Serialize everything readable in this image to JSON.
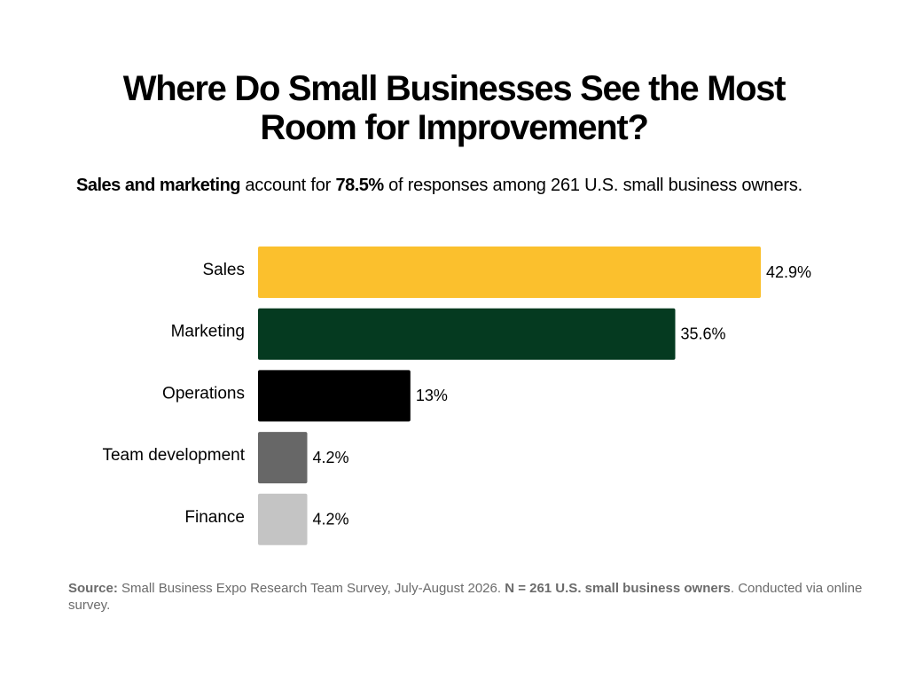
{
  "title": {
    "line1": "Where Do Small Businesses See the Most",
    "line2": "Room for Improvement?"
  },
  "subtitle": {
    "bold_lead": "Sales and marketing",
    "text1": " account for ",
    "bold_value": "78.5%",
    "text2": " of responses among 261 U.S. small business owners."
  },
  "chart_data": {
    "type": "bar",
    "orientation": "horizontal",
    "categories": [
      "Sales",
      "Marketing",
      "Operations",
      "Team development",
      "Finance"
    ],
    "values": [
      42.9,
      35.6,
      13,
      4.2,
      4.2
    ],
    "value_labels": [
      "42.9%",
      "35.6%",
      "13%",
      "4.2%",
      "4.2%"
    ],
    "colors": [
      "#FBC02D",
      "#053A20",
      "#000000",
      "#676767",
      "#C4C4C4"
    ],
    "title": "Where Do Small Businesses See the Most Room for Improvement?",
    "xlabel": "",
    "ylabel": "",
    "xlim": [
      0,
      42.9
    ],
    "grid": false,
    "legend": "none"
  },
  "source": {
    "label": "Source:",
    "text1": " Small Business Expo Research Team Survey, July-August 2026. ",
    "bold_n": "N = 261 U.S. small business owners",
    "text2": ". Conducted via online survey."
  }
}
